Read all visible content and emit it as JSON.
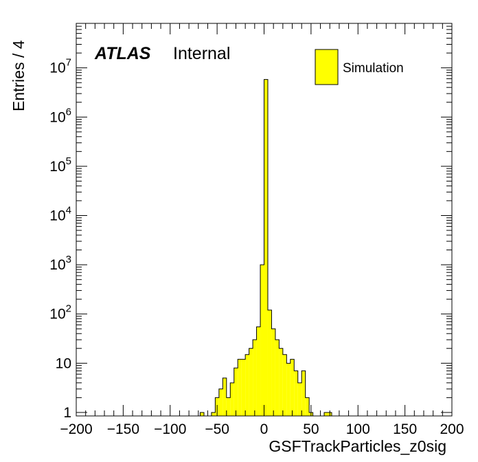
{
  "chart_data": {
    "type": "bar",
    "title": "",
    "xlabel": "GSFTrackParticles_z0sig",
    "ylabel": "Entries / 4",
    "x_range": [
      -200,
      200
    ],
    "y_range": [
      0.85,
      80000000
    ],
    "y_scale": "log",
    "bin_width": 4,
    "grid": false,
    "legend_position": "top-right",
    "fill_color": "#ffff00",
    "edge_color": "#000000",
    "x_tick_labels": [
      "−200",
      "−150",
      "−100",
      "−50",
      "0",
      "50",
      "100",
      "150",
      "200"
    ],
    "y_tick_labels": [
      {
        "base": "1",
        "exp": ""
      },
      {
        "base": "10",
        "exp": ""
      },
      {
        "base": "10",
        "exp": "2"
      },
      {
        "base": "10",
        "exp": "3"
      },
      {
        "base": "10",
        "exp": "4"
      },
      {
        "base": "10",
        "exp": "5"
      },
      {
        "base": "10",
        "exp": "6"
      },
      {
        "base": "10",
        "exp": "7"
      }
    ],
    "label": {
      "experiment": "ATLAS",
      "status": "Internal"
    },
    "series": [
      {
        "name": "Simulation",
        "bins": [
          {
            "lo": -68,
            "hi": -64,
            "value": 1
          },
          {
            "lo": -56,
            "hi": -52,
            "value": 1
          },
          {
            "lo": -52,
            "hi": -48,
            "value": 2
          },
          {
            "lo": -48,
            "hi": -44,
            "value": 3
          },
          {
            "lo": -44,
            "hi": -40,
            "value": 5
          },
          {
            "lo": -40,
            "hi": -36,
            "value": 2
          },
          {
            "lo": -36,
            "hi": -32,
            "value": 4
          },
          {
            "lo": -32,
            "hi": -28,
            "value": 8
          },
          {
            "lo": -28,
            "hi": -24,
            "value": 12
          },
          {
            "lo": -24,
            "hi": -20,
            "value": 12
          },
          {
            "lo": -20,
            "hi": -16,
            "value": 15
          },
          {
            "lo": -16,
            "hi": -12,
            "value": 20
          },
          {
            "lo": -12,
            "hi": -8,
            "value": 30
          },
          {
            "lo": -8,
            "hi": -4,
            "value": 55
          },
          {
            "lo": -4,
            "hi": 0,
            "value": 1000
          },
          {
            "lo": 0,
            "hi": 4,
            "value": 5800000
          },
          {
            "lo": 4,
            "hi": 8,
            "value": 120
          },
          {
            "lo": 8,
            "hi": 12,
            "value": 50
          },
          {
            "lo": 12,
            "hi": 16,
            "value": 30
          },
          {
            "lo": 16,
            "hi": 20,
            "value": 20
          },
          {
            "lo": 20,
            "hi": 24,
            "value": 15
          },
          {
            "lo": 24,
            "hi": 28,
            "value": 10
          },
          {
            "lo": 28,
            "hi": 32,
            "value": 12
          },
          {
            "lo": 32,
            "hi": 36,
            "value": 7
          },
          {
            "lo": 36,
            "hi": 40,
            "value": 4
          },
          {
            "lo": 40,
            "hi": 44,
            "value": 7
          },
          {
            "lo": 44,
            "hi": 48,
            "value": 2
          },
          {
            "lo": 48,
            "hi": 52,
            "value": 1
          },
          {
            "lo": 64,
            "hi": 68,
            "value": 1
          },
          {
            "lo": 68,
            "hi": 72,
            "value": 1
          }
        ]
      }
    ]
  }
}
